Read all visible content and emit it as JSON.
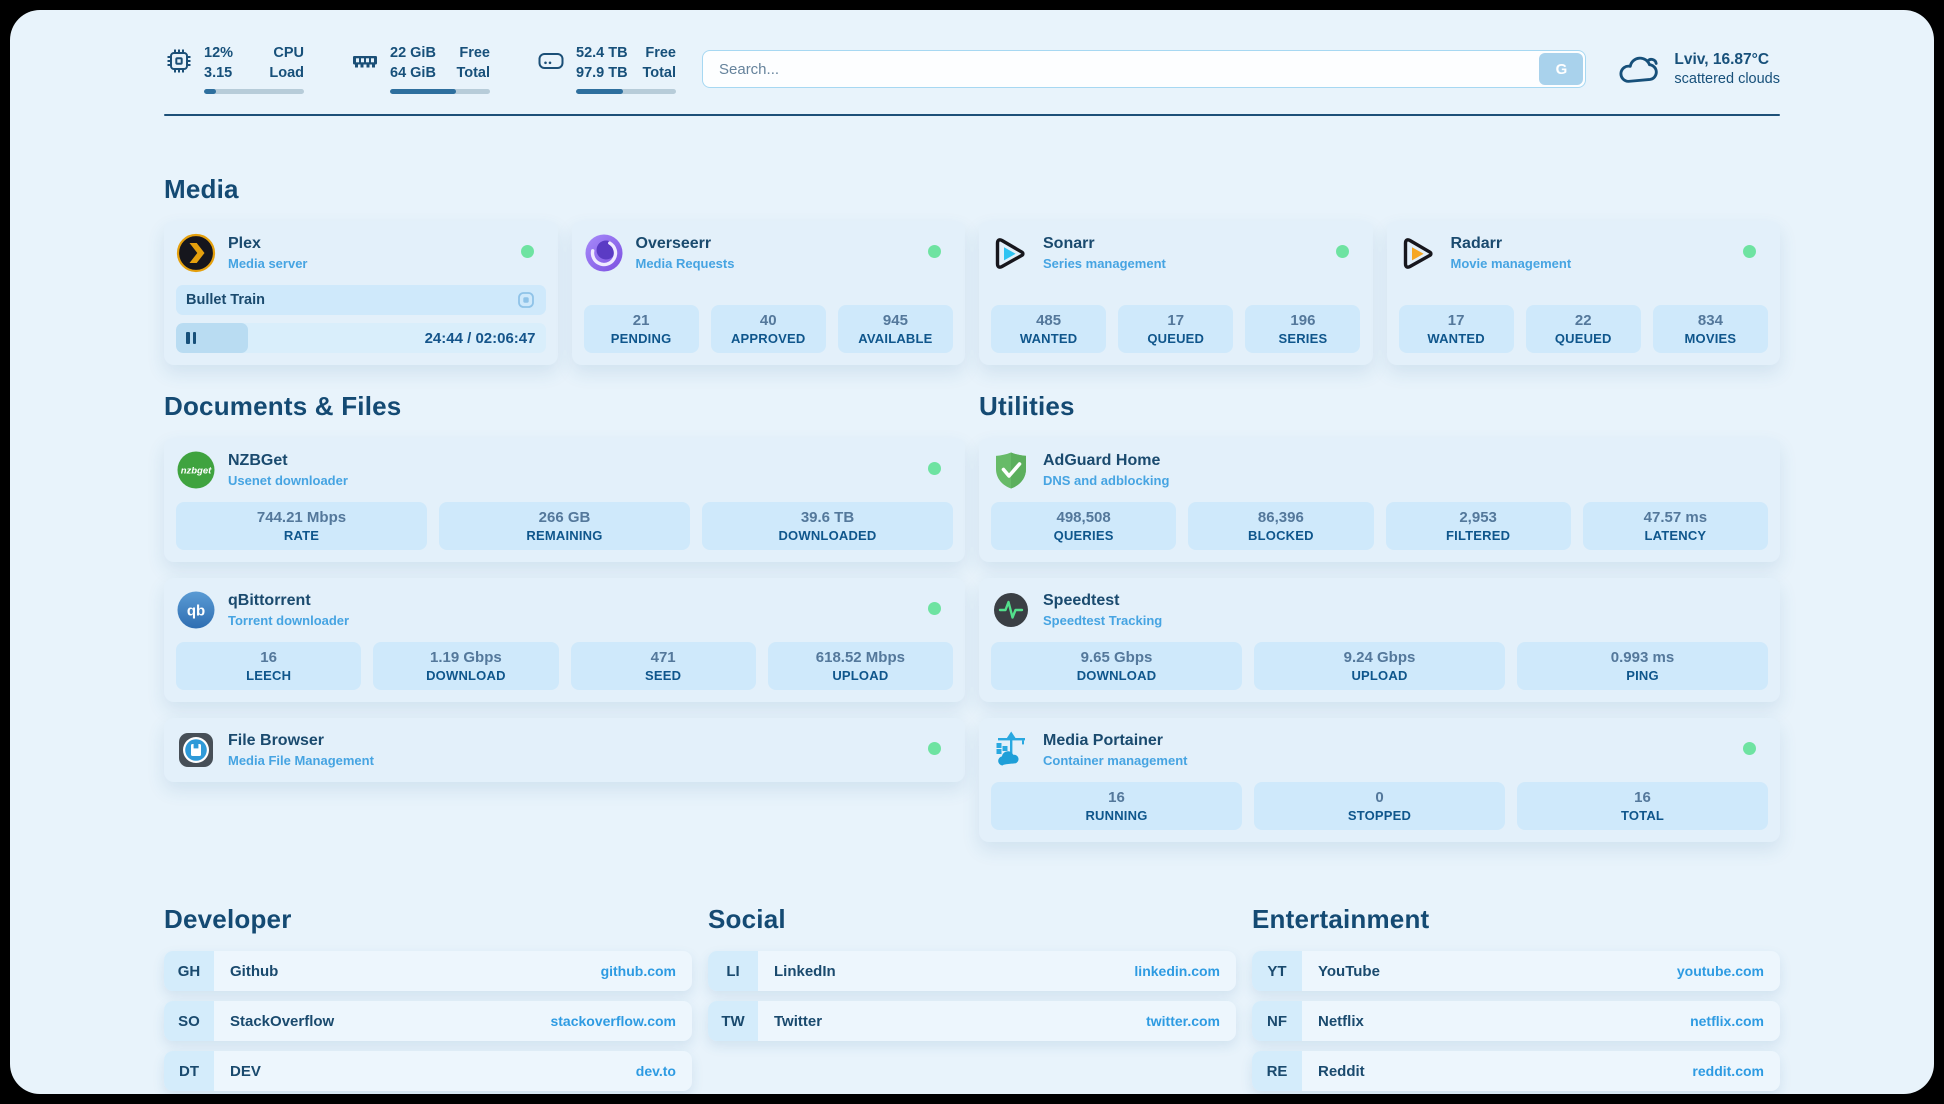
{
  "colors": {
    "page_bg": "#e8f3fb",
    "accent_navy": "#1d5078",
    "status_online": "#6ee3a1",
    "chip_bg": "#cfe9fb",
    "link_url_blue": "#2e9be2",
    "subtitle_blue": "#46a4e2"
  },
  "header": {
    "system_stats": [
      {
        "icon": "cpu-icon",
        "value_line1": "12%",
        "value_line2": "3.15",
        "label_line1": "CPU",
        "label_line2": "Load",
        "progress_pct": 12
      },
      {
        "icon": "memory-icon",
        "value_line1": "22 GiB",
        "value_line2": "64 GiB",
        "label_line1": "Free",
        "label_line2": "Total",
        "progress_pct": 66
      },
      {
        "icon": "disk-icon",
        "value_line1": "52.4 TB",
        "value_line2": "97.9 TB",
        "label_line1": "Free",
        "label_line2": "Total",
        "progress_pct": 47
      }
    ],
    "search": {
      "placeholder": "Search...",
      "button_label": "G"
    },
    "weather": {
      "icon": "cloud-icon",
      "location": "Lviv, 16.87°C",
      "condition": "scattered clouds"
    }
  },
  "sections": {
    "media": {
      "title": "Media",
      "plex": {
        "title": "Plex",
        "subtitle": "Media server",
        "status": "online",
        "now_playing": "Bullet Train",
        "playback_state": "paused",
        "time": "24:44 / 02:06:47",
        "progress_pct": 19.5
      },
      "overseerr": {
        "title": "Overseerr",
        "subtitle": "Media Requests",
        "status": "online",
        "stats": [
          {
            "value": "21",
            "label": "PENDING"
          },
          {
            "value": "40",
            "label": "APPROVED"
          },
          {
            "value": "945",
            "label": "AVAILABLE"
          }
        ]
      },
      "sonarr": {
        "title": "Sonarr",
        "subtitle": "Series management",
        "status": "online",
        "stats": [
          {
            "value": "485",
            "label": "WANTED"
          },
          {
            "value": "17",
            "label": "QUEUED"
          },
          {
            "value": "196",
            "label": "SERIES"
          }
        ]
      },
      "radarr": {
        "title": "Radarr",
        "subtitle": "Movie management",
        "status": "online",
        "stats": [
          {
            "value": "17",
            "label": "WANTED"
          },
          {
            "value": "22",
            "label": "QUEUED"
          },
          {
            "value": "834",
            "label": "MOVIES"
          }
        ]
      }
    },
    "documents": {
      "title": "Documents & Files",
      "nzbget": {
        "title": "NZBGet",
        "subtitle": "Usenet downloader",
        "status": "online",
        "stats": [
          {
            "value": "744.21 Mbps",
            "label": "RATE"
          },
          {
            "value": "266 GB",
            "label": "REMAINING"
          },
          {
            "value": "39.6 TB",
            "label": "DOWNLOADED"
          }
        ]
      },
      "qbittorrent": {
        "title": "qBittorrent",
        "subtitle": "Torrent downloader",
        "status": "online",
        "stats": [
          {
            "value": "16",
            "label": "LEECH"
          },
          {
            "value": "1.19 Gbps",
            "label": "DOWNLOAD"
          },
          {
            "value": "471",
            "label": "SEED"
          },
          {
            "value": "618.52 Mbps",
            "label": "UPLOAD"
          }
        ]
      },
      "filebrowser": {
        "title": "File Browser",
        "subtitle": "Media File Management",
        "status": "online"
      }
    },
    "utilities": {
      "title": "Utilities",
      "adguard": {
        "title": "AdGuard Home",
        "subtitle": "DNS and adblocking",
        "stats": [
          {
            "value": "498,508",
            "label": "QUERIES"
          },
          {
            "value": "86,396",
            "label": "BLOCKED"
          },
          {
            "value": "2,953",
            "label": "FILTERED"
          },
          {
            "value": "47.57 ms",
            "label": "LATENCY"
          }
        ]
      },
      "speedtest": {
        "title": "Speedtest",
        "subtitle": "Speedtest Tracking",
        "stats": [
          {
            "value": "9.65 Gbps",
            "label": "DOWNLOAD"
          },
          {
            "value": "9.24 Gbps",
            "label": "UPLOAD"
          },
          {
            "value": "0.993 ms",
            "label": "PING"
          }
        ]
      },
      "portainer": {
        "title": "Media Portainer",
        "subtitle": "Container management",
        "status": "online",
        "stats": [
          {
            "value": "16",
            "label": "RUNNING"
          },
          {
            "value": "0",
            "label": "STOPPED"
          },
          {
            "value": "16",
            "label": "TOTAL"
          }
        ]
      }
    },
    "developer": {
      "title": "Developer",
      "items": [
        {
          "abbr": "GH",
          "name": "Github",
          "url": "github.com"
        },
        {
          "abbr": "SO",
          "name": "StackOverflow",
          "url": "stackoverflow.com"
        },
        {
          "abbr": "DT",
          "name": "DEV",
          "url": "dev.to"
        }
      ]
    },
    "social": {
      "title": "Social",
      "items": [
        {
          "abbr": "LI",
          "name": "LinkedIn",
          "url": "linkedin.com"
        },
        {
          "abbr": "TW",
          "name": "Twitter",
          "url": "twitter.com"
        }
      ]
    },
    "entertainment": {
      "title": "Entertainment",
      "items": [
        {
          "abbr": "YT",
          "name": "YouTube",
          "url": "youtube.com"
        },
        {
          "abbr": "NF",
          "name": "Netflix",
          "url": "netflix.com"
        },
        {
          "abbr": "RE",
          "name": "Reddit",
          "url": "reddit.com"
        }
      ]
    }
  }
}
